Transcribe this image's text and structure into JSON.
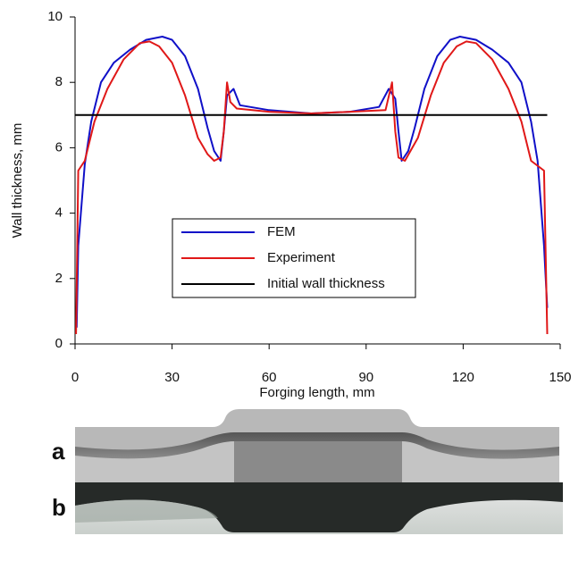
{
  "chart_data": {
    "type": "line",
    "xlabel": "Forging length, mm",
    "ylabel": "Wall thickness, mm",
    "xlim": [
      0,
      150
    ],
    "xticks": [
      0,
      30,
      60,
      90,
      120,
      150
    ],
    "ylim": [
      0,
      10
    ],
    "yticks": [
      0,
      2,
      4,
      6,
      8,
      10
    ],
    "grid": false,
    "legend": "lower center",
    "series": [
      {
        "name": "FEM",
        "color": "#1010c8",
        "x": [
          0.5,
          1,
          3,
          5,
          8,
          12,
          17,
          22,
          27,
          30,
          34,
          38,
          41,
          43,
          45,
          46,
          47,
          49,
          51,
          60,
          73,
          85,
          94,
          97,
          99,
          100,
          101,
          103,
          105,
          108,
          112,
          116,
          119,
          124,
          129,
          134,
          138,
          141,
          143,
          145,
          146
        ],
        "values": [
          0.5,
          3,
          5.5,
          6.8,
          8,
          8.6,
          9.0,
          9.3,
          9.4,
          9.3,
          8.8,
          7.8,
          6.6,
          5.9,
          5.6,
          6.5,
          7.6,
          7.8,
          7.3,
          7.15,
          7.05,
          7.1,
          7.25,
          7.8,
          7.5,
          6.5,
          5.6,
          5.9,
          6.6,
          7.8,
          8.8,
          9.3,
          9.4,
          9.3,
          9.0,
          8.6,
          8.0,
          6.8,
          5.6,
          3,
          1.1
        ]
      },
      {
        "name": "Experiment",
        "color": "#e01818",
        "x": [
          0.3,
          1,
          3,
          6,
          10,
          15,
          20,
          23,
          26,
          30,
          34,
          38,
          41,
          43,
          45,
          46,
          47,
          48,
          50,
          60,
          73,
          85,
          96,
          98,
          99,
          100,
          102,
          106,
          110,
          114,
          118,
          121,
          124,
          129,
          134,
          138,
          141,
          145,
          146
        ],
        "values": [
          0.3,
          5.3,
          5.6,
          6.8,
          7.8,
          8.7,
          9.2,
          9.25,
          9.1,
          8.6,
          7.6,
          6.3,
          5.8,
          5.6,
          5.7,
          6.5,
          8.0,
          7.4,
          7.2,
          7.1,
          7.05,
          7.1,
          7.15,
          8.0,
          6.5,
          5.7,
          5.6,
          6.3,
          7.6,
          8.6,
          9.1,
          9.25,
          9.2,
          8.7,
          7.8,
          6.8,
          5.6,
          5.3,
          0.3
        ]
      },
      {
        "name": "Initial wall thickness",
        "color": "#000000",
        "x": [
          0,
          146
        ],
        "values": [
          7,
          7
        ]
      }
    ]
  },
  "panel_labels": [
    "a",
    "b"
  ]
}
